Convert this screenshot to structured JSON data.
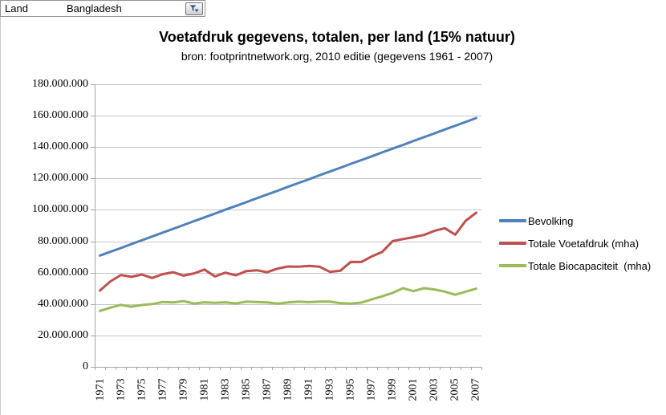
{
  "sheet": {
    "filter_label": "Land",
    "filter_value": "Bangladesh",
    "filter_icon": "filter-funnel-icon"
  },
  "chart_data": {
    "type": "line",
    "title": "Voetafdruk gegevens, totalen, per land (15% natuur)",
    "subtitle": "bron: footprintnetwork.org, 2010 editie (gegevens 1961 - 2007)",
    "x": [
      1971,
      1972,
      1973,
      1974,
      1975,
      1976,
      1977,
      1978,
      1979,
      1980,
      1981,
      1982,
      1983,
      1984,
      1985,
      1986,
      1987,
      1988,
      1989,
      1990,
      1991,
      1992,
      1993,
      1994,
      1995,
      1996,
      1997,
      1998,
      1999,
      2000,
      2001,
      2002,
      2003,
      2004,
      2005,
      2006,
      2007
    ],
    "x_tick_labels_shown": [
      "1971",
      "1973",
      "1975",
      "1977",
      "1979",
      "1981",
      "1983",
      "1985",
      "1987",
      "1989",
      "1991",
      "1993",
      "1995",
      "1997",
      "1999",
      "2001",
      "2003",
      "2005",
      "2007"
    ],
    "series": [
      {
        "name": "Bevolking",
        "color": "#4F81BD",
        "values": [
          70900000,
          73300000,
          75700000,
          78200000,
          80600000,
          83000000,
          85500000,
          87900000,
          90300000,
          92800000,
          95200000,
          97600000,
          100100000,
          102500000,
          104900000,
          107400000,
          109800000,
          112200000,
          114700000,
          117100000,
          119500000,
          122000000,
          124400000,
          126800000,
          129300000,
          131700000,
          134100000,
          136600000,
          139000000,
          141400000,
          143900000,
          146300000,
          148700000,
          151200000,
          153600000,
          156000000,
          158500000
        ]
      },
      {
        "name": "Totale Voetafdruk (mha)",
        "color": "#C0504D",
        "values": [
          48600000,
          54400000,
          58500000,
          57300000,
          58800000,
          56600000,
          59000000,
          60300000,
          58100000,
          59500000,
          62000000,
          57600000,
          60000000,
          58300000,
          61000000,
          61500000,
          60300000,
          62600000,
          63900000,
          63800000,
          64300000,
          63800000,
          60500000,
          61200000,
          66900000,
          66800000,
          70300000,
          73200000,
          80100000,
          81400000,
          82600000,
          84000000,
          86600000,
          88300000,
          84200000,
          93100000,
          98200000
        ]
      },
      {
        "name": "Totale Biocapaciteit  (mha)",
        "color": "#9BBB59",
        "values": [
          35600000,
          37700000,
          39500000,
          38300000,
          39400000,
          40000000,
          41300000,
          41000000,
          41900000,
          40300000,
          41100000,
          40800000,
          41100000,
          40400000,
          41500000,
          41300000,
          41000000,
          40300000,
          41000000,
          41500000,
          41200000,
          41500000,
          41500000,
          40600000,
          40300000,
          40900000,
          43000000,
          44900000,
          47100000,
          50100000,
          48200000,
          50100000,
          49300000,
          47900000,
          45900000,
          47900000,
          49800000
        ]
      }
    ],
    "ylim": [
      0,
      180000000
    ],
    "ytick_step": 20000000,
    "ytick_labels": [
      "0",
      "20.000.000",
      "40.000.000",
      "60.000.000",
      "80.000.000",
      "100.000.000",
      "120.000.000",
      "140.000.000",
      "160.000.000",
      "180.000.000"
    ],
    "grid": true,
    "legend_position": "right"
  }
}
